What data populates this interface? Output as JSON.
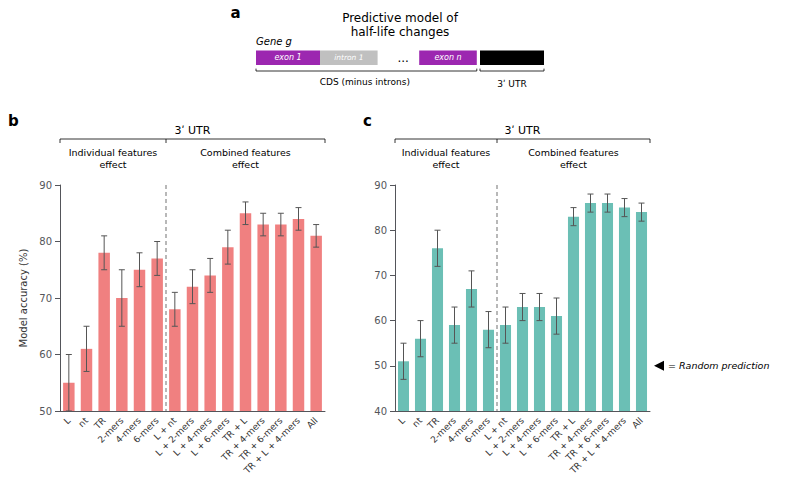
{
  "annotations": [
    "a",
    "Predictive model of\nhalf-life changes",
    "Gene g",
    "exon 1",
    "intron 1",
    "...",
    "exon n",
    "3ʹ UTR",
    "CDS (minus introns)"
  ],
  "chart_data": [
    {
      "type": "bar",
      "title": "b",
      "categories": [
        "L",
        "nt",
        "TR",
        "2-mers",
        "4-mers",
        "6-mers",
        "L + nt",
        "L + 2-mers",
        "L + 4-mers",
        "L + 6-mers",
        "TR + L",
        "TR + 4-mers",
        "TR + 6-mers",
        "TR + L + 4-mers",
        "All"
      ],
      "values": [
        55,
        61,
        78,
        70,
        75,
        77,
        68,
        72,
        74,
        79,
        85,
        83,
        83,
        84,
        81
      ],
      "errors": [
        5,
        4,
        3,
        5,
        3,
        3,
        3,
        3,
        3,
        3,
        2,
        2,
        2,
        2,
        2
      ],
      "color": "#F08080",
      "y_label": "Model accuracy (%)",
      "ylim": [
        50,
        90
      ],
      "yticks": [
        50,
        60,
        70,
        80,
        90
      ],
      "grid": false,
      "divider_after_index": 5,
      "annotations": [
        "3ʹ UTR",
        "Individual features\neffect",
        "Combined features\neffect"
      ]
    },
    {
      "type": "bar",
      "title": "c",
      "categories": [
        "L",
        "nt",
        "TR",
        "2-mers",
        "4-mers",
        "6-mers",
        "L + nt",
        "L + 2-mers",
        "L + 4-mers",
        "L + 6-mers",
        "TR + L",
        "TR + 4-mers",
        "TR + 6-mers",
        "TR + L + 4-mers",
        "All"
      ],
      "values": [
        51,
        56,
        76,
        59,
        67,
        58,
        59,
        63,
        63,
        61,
        83,
        86,
        86,
        85,
        84
      ],
      "errors": [
        4,
        4,
        4,
        4,
        4,
        4,
        4,
        3,
        3,
        4,
        2,
        2,
        2,
        2,
        2
      ],
      "color": "#6BBFB5",
      "ylim": [
        40,
        90
      ],
      "yticks": [
        40,
        50,
        60,
        70,
        80,
        90
      ],
      "grid": false,
      "divider_after_index": 5,
      "annotations": [
        "3ʹ UTR",
        "Individual features\neffect",
        "Combined features\neffect",
        {
          "text": "= Random prediction",
          "y": 50
        }
      ]
    }
  ]
}
